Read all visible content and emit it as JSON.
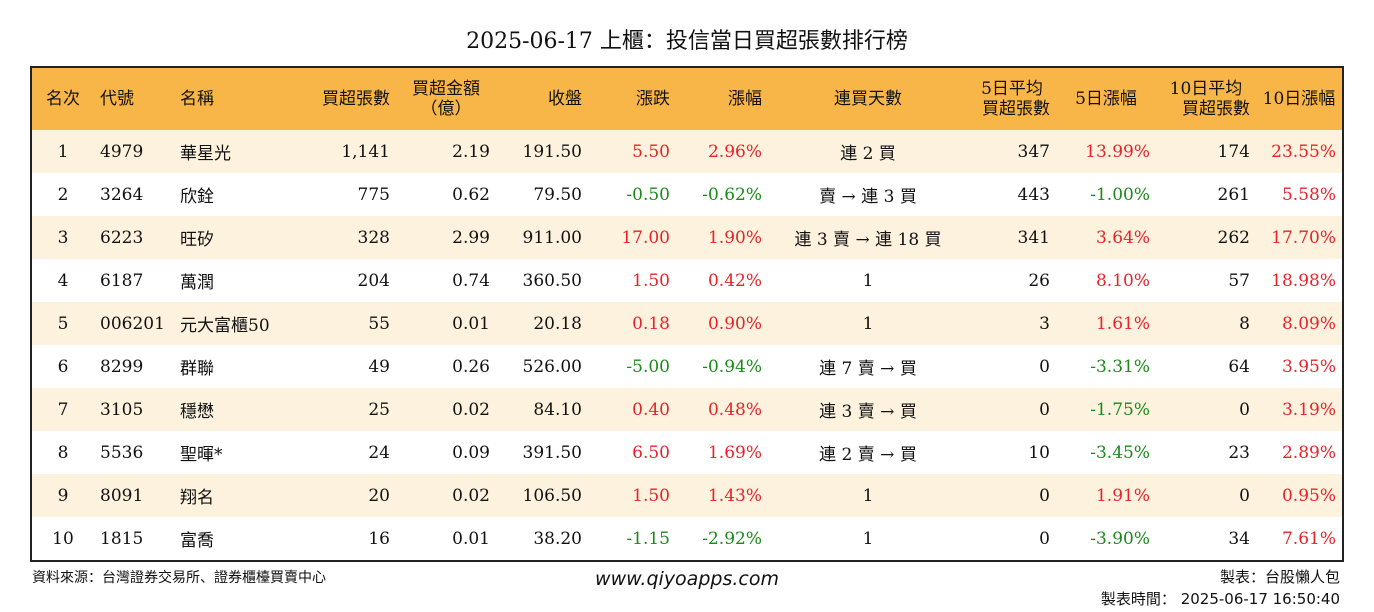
{
  "title": "2025-06-17 上櫃：投信當日買超張數排行榜",
  "headers": {
    "rank": "名次",
    "code": "代號",
    "name": "名稱",
    "net_buy_lots": "買超張數",
    "net_buy_amount_1": "買超金額",
    "net_buy_amount_2": "（億）",
    "close": "收盤",
    "change": "漲跌",
    "pct": "漲幅",
    "streak": "連買天數",
    "avg5_1": "5日平均",
    "avg5_2": "買超張數",
    "pct5": "5日漲幅",
    "avg10_1": "10日平均",
    "avg10_2": "買超張數",
    "pct10": "10日漲幅"
  },
  "rows": [
    {
      "rank": "1",
      "code": "4979",
      "name": "華星光",
      "lots": "1,141",
      "amount": "2.19",
      "close": "191.50",
      "change": "5.50",
      "change_dir": "up",
      "pct": "2.96%",
      "pct_dir": "up",
      "streak": "連 2 買",
      "avg5": "347",
      "pct5": "13.99%",
      "pct5_dir": "up",
      "avg10": "174",
      "pct10": "23.55%",
      "pct10_dir": "up"
    },
    {
      "rank": "2",
      "code": "3264",
      "name": "欣銓",
      "lots": "775",
      "amount": "0.62",
      "close": "79.50",
      "change": "-0.50",
      "change_dir": "down",
      "pct": "-0.62%",
      "pct_dir": "down",
      "streak": "賣 → 連 3 買",
      "avg5": "443",
      "pct5": "-1.00%",
      "pct5_dir": "down",
      "avg10": "261",
      "pct10": "5.58%",
      "pct10_dir": "up"
    },
    {
      "rank": "3",
      "code": "6223",
      "name": "旺矽",
      "lots": "328",
      "amount": "2.99",
      "close": "911.00",
      "change": "17.00",
      "change_dir": "up",
      "pct": "1.90%",
      "pct_dir": "up",
      "streak": "連 3 賣 → 連 18 買",
      "avg5": "341",
      "pct5": "3.64%",
      "pct5_dir": "up",
      "avg10": "262",
      "pct10": "17.70%",
      "pct10_dir": "up"
    },
    {
      "rank": "4",
      "code": "6187",
      "name": "萬潤",
      "lots": "204",
      "amount": "0.74",
      "close": "360.50",
      "change": "1.50",
      "change_dir": "up",
      "pct": "0.42%",
      "pct_dir": "up",
      "streak": "1",
      "avg5": "26",
      "pct5": "8.10%",
      "pct5_dir": "up",
      "avg10": "57",
      "pct10": "18.98%",
      "pct10_dir": "up"
    },
    {
      "rank": "5",
      "code": "006201",
      "name": "元大富櫃50",
      "lots": "55",
      "amount": "0.01",
      "close": "20.18",
      "change": "0.18",
      "change_dir": "up",
      "pct": "0.90%",
      "pct_dir": "up",
      "streak": "1",
      "avg5": "3",
      "pct5": "1.61%",
      "pct5_dir": "up",
      "avg10": "8",
      "pct10": "8.09%",
      "pct10_dir": "up"
    },
    {
      "rank": "6",
      "code": "8299",
      "name": "群聯",
      "lots": "49",
      "amount": "0.26",
      "close": "526.00",
      "change": "-5.00",
      "change_dir": "down",
      "pct": "-0.94%",
      "pct_dir": "down",
      "streak": "連 7 賣 → 買",
      "avg5": "0",
      "pct5": "-3.31%",
      "pct5_dir": "down",
      "avg10": "64",
      "pct10": "3.95%",
      "pct10_dir": "up"
    },
    {
      "rank": "7",
      "code": "3105",
      "name": "穩懋",
      "lots": "25",
      "amount": "0.02",
      "close": "84.10",
      "change": "0.40",
      "change_dir": "up",
      "pct": "0.48%",
      "pct_dir": "up",
      "streak": "連 3 賣 → 買",
      "avg5": "0",
      "pct5": "-1.75%",
      "pct5_dir": "down",
      "avg10": "0",
      "pct10": "3.19%",
      "pct10_dir": "up"
    },
    {
      "rank": "8",
      "code": "5536",
      "name": "聖暉*",
      "lots": "24",
      "amount": "0.09",
      "close": "391.50",
      "change": "6.50",
      "change_dir": "up",
      "pct": "1.69%",
      "pct_dir": "up",
      "streak": "連 2 賣 → 買",
      "avg5": "10",
      "pct5": "-3.45%",
      "pct5_dir": "down",
      "avg10": "23",
      "pct10": "2.89%",
      "pct10_dir": "up"
    },
    {
      "rank": "9",
      "code": "8091",
      "name": "翔名",
      "lots": "20",
      "amount": "0.02",
      "close": "106.50",
      "change": "1.50",
      "change_dir": "up",
      "pct": "1.43%",
      "pct_dir": "up",
      "streak": "1",
      "avg5": "0",
      "pct5": "1.91%",
      "pct5_dir": "up",
      "avg10": "0",
      "pct10": "0.95%",
      "pct10_dir": "up"
    },
    {
      "rank": "10",
      "code": "1815",
      "name": "富喬",
      "lots": "16",
      "amount": "0.01",
      "close": "38.20",
      "change": "-1.15",
      "change_dir": "down",
      "pct": "-2.92%",
      "pct_dir": "down",
      "streak": "1",
      "avg5": "0",
      "pct5": "-3.90%",
      "pct5_dir": "down",
      "avg10": "34",
      "pct10": "7.61%",
      "pct10_dir": "up"
    }
  ],
  "footer": {
    "source": "資料來源：台灣證券交易所、證券櫃檯買賣中心",
    "website": "www.qiyoapps.com",
    "maker": "製表：台股懶人包",
    "made_time": "製表時間： 2025-06-17 16:50:40"
  },
  "colors": {
    "header_bg": "#f9b648",
    "stripe_bg": "#fdf2dd",
    "up": "#e8222a",
    "down": "#1a8a1a"
  }
}
